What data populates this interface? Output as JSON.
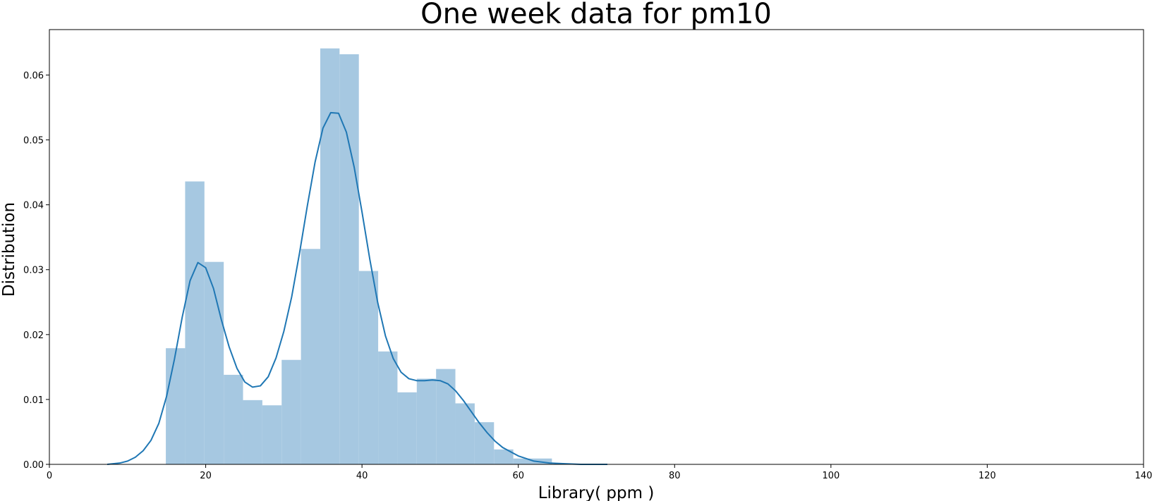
{
  "chart_data": {
    "type": "bar",
    "title": "One week data for pm10",
    "xlabel": "Library( ppm )",
    "ylabel": "Distribution",
    "xlim": [
      0,
      140
    ],
    "ylim": [
      0,
      0.067
    ],
    "grid": false,
    "x_ticks": [
      0,
      20,
      40,
      60,
      80,
      100,
      120,
      140
    ],
    "x_tick_labels": [
      "0",
      "20",
      "40",
      "60",
      "80",
      "100",
      "120",
      "140"
    ],
    "y_ticks": [
      0,
      0.01,
      0.02,
      0.03,
      0.04,
      0.05,
      0.06
    ],
    "y_tick_labels": [
      "0.00",
      "0.01",
      "0.02",
      "0.03",
      "0.04",
      "0.05",
      "0.06"
    ],
    "histogram": {
      "bin_edges": [
        14.9,
        17.37,
        19.84,
        22.31,
        24.78,
        27.25,
        29.72,
        32.19,
        34.66,
        37.13,
        39.6,
        42.07,
        44.54,
        47.01,
        49.48,
        51.95,
        54.42,
        56.89,
        59.36,
        61.83,
        64.3
      ],
      "density": [
        0.0179,
        0.0436,
        0.0312,
        0.0138,
        0.0099,
        0.0091,
        0.0161,
        0.0332,
        0.0641,
        0.0632,
        0.0298,
        0.0174,
        0.0111,
        0.0132,
        0.0147,
        0.0094,
        0.0065,
        0.0023,
        0.0009,
        0.0009
      ],
      "color": "#a6c8e1"
    },
    "kde": {
      "x": [
        7.4,
        9,
        10,
        11,
        12,
        13,
        14,
        15,
        16,
        17,
        18,
        19,
        20,
        21,
        22,
        23,
        24,
        25,
        26,
        27,
        28,
        29,
        30,
        31,
        32,
        33,
        34,
        35,
        36,
        37,
        38,
        39,
        40,
        41,
        42,
        43,
        44,
        45,
        46,
        47,
        48,
        49,
        50,
        51,
        52,
        53,
        54,
        55,
        56,
        57,
        58,
        60,
        62,
        64,
        66,
        68,
        71.4
      ],
      "y": [
        0.0,
        0.0002,
        0.0005,
        0.0011,
        0.0021,
        0.0037,
        0.0063,
        0.0105,
        0.0162,
        0.0227,
        0.0283,
        0.0311,
        0.0303,
        0.0271,
        0.0223,
        0.0181,
        0.0148,
        0.0127,
        0.0119,
        0.0121,
        0.0135,
        0.0164,
        0.0205,
        0.0258,
        0.0325,
        0.0398,
        0.0466,
        0.0518,
        0.0542,
        0.0541,
        0.0512,
        0.0458,
        0.0389,
        0.0316,
        0.025,
        0.0198,
        0.0163,
        0.0142,
        0.0132,
        0.0129,
        0.0129,
        0.013,
        0.0129,
        0.0124,
        0.0113,
        0.0098,
        0.0081,
        0.0064,
        0.0049,
        0.0036,
        0.0026,
        0.0013,
        0.0005,
        0.0002,
        0.0001,
        0.0,
        0.0
      ],
      "color": "#1f77b4"
    }
  }
}
